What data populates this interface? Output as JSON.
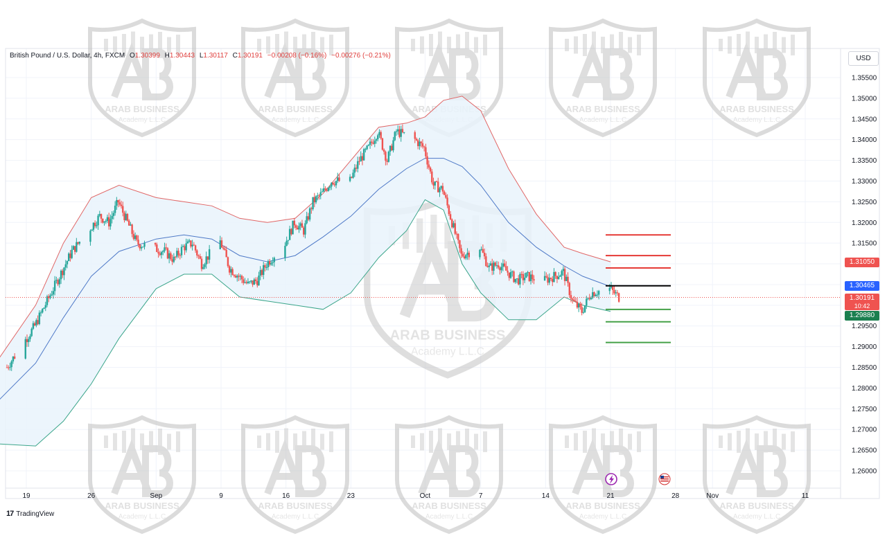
{
  "header": {
    "symbol": "British Pound / U.S. Dollar, 4h, FXCM",
    "open_label": "O",
    "open": "1.30399",
    "high_label": "H",
    "high": "1.30443",
    "low_label": "L",
    "low": "1.30117",
    "close_label": "C",
    "close": "1.30191",
    "change": "−0.00208 (−0.16%)",
    "change2": "−0.00276 (−0.21%)"
  },
  "currency": "USD",
  "brand": {
    "name": "TradingView"
  },
  "watermark": {
    "name": "ARAB BUSINESS",
    "sub": "Academy L.L.C"
  },
  "colors": {
    "up": "#26a69a",
    "down": "#ef5350",
    "upper_band": "#e06666",
    "middle_band": "#4e79c7",
    "lower_band": "#3aa58a",
    "band_fill": "#e9f3fb",
    "resistance": "#e53935",
    "support": "#43a047",
    "pivot": "#000000",
    "tag_red": "#ef5350",
    "tag_blue": "#2962ff",
    "tag_green": "#1b7f4f"
  },
  "tags": {
    "resistance": "1.31050",
    "pivot": "1.30465",
    "last_price": "1.30191",
    "countdown": "10:42",
    "support": "1.29880"
  },
  "chart_data": {
    "type": "line",
    "title": "",
    "xlabel": "",
    "ylabel": "",
    "y_ticks": [
      "1.35500",
      "1.35000",
      "1.34500",
      "1.34000",
      "1.33500",
      "1.33000",
      "1.32500",
      "1.32000",
      "1.31500",
      "1.31000",
      "1.30500",
      "1.30000",
      "1.29500",
      "1.29000",
      "1.28500",
      "1.28000",
      "1.27500",
      "1.27000",
      "1.26500",
      "1.26000"
    ],
    "ylim": [
      1.257,
      1.361
    ],
    "x_ticks": [
      {
        "label": "19",
        "date": "2024-08-19"
      },
      {
        "label": "26",
        "date": "2024-08-26"
      },
      {
        "label": "Sep",
        "date": "2024-09-02"
      },
      {
        "label": "9",
        "date": "2024-09-09"
      },
      {
        "label": "16",
        "date": "2024-09-16"
      },
      {
        "label": "23",
        "date": "2024-09-23"
      },
      {
        "label": "Oct",
        "date": "2024-10-01"
      },
      {
        "label": "7",
        "date": "2024-10-07"
      },
      {
        "label": "14",
        "date": "2024-10-14"
      },
      {
        "label": "21",
        "date": "2024-10-21"
      },
      {
        "label": "28",
        "date": "2024-10-28"
      },
      {
        "label": "Nov",
        "date": "2024-11-01"
      },
      {
        "label": "11",
        "date": "2024-11-11"
      }
    ],
    "price_path": [
      [
        "2024-08-16",
        1.285
      ],
      [
        "2024-08-19",
        1.295
      ],
      [
        "2024-08-21",
        1.304
      ],
      [
        "2024-08-23",
        1.313
      ],
      [
        "2024-08-26",
        1.3215
      ],
      [
        "2024-08-27",
        1.32
      ],
      [
        "2024-08-28",
        1.325
      ],
      [
        "2024-08-29",
        1.32
      ],
      [
        "2024-08-30",
        1.315
      ],
      [
        "2024-09-02",
        1.313
      ],
      [
        "2024-09-03",
        1.311
      ],
      [
        "2024-09-04",
        1.314
      ],
      [
        "2024-09-05",
        1.315
      ],
      [
        "2024-09-06",
        1.31
      ],
      [
        "2024-09-08",
        1.3155
      ],
      [
        "2024-09-09",
        1.309
      ],
      [
        "2024-09-10",
        1.307
      ],
      [
        "2024-09-11",
        1.305
      ],
      [
        "2024-09-12",
        1.306
      ],
      [
        "2024-09-13",
        1.31
      ],
      [
        "2024-09-15",
        1.315
      ],
      [
        "2024-09-16",
        1.32
      ],
      [
        "2024-09-17",
        1.318
      ],
      [
        "2024-09-18",
        1.325
      ],
      [
        "2024-09-19",
        1.327
      ],
      [
        "2024-09-20",
        1.33
      ],
      [
        "2024-09-22",
        1.33
      ],
      [
        "2024-09-23",
        1.335
      ],
      [
        "2024-09-24",
        1.338
      ],
      [
        "2024-09-25",
        1.342
      ],
      [
        "2024-09-26",
        1.335
      ],
      [
        "2024-09-27",
        1.342
      ],
      [
        "2024-09-28",
        1.341
      ],
      [
        "2024-09-29",
        1.34
      ],
      [
        "2024-09-30",
        1.338
      ],
      [
        "2024-10-01",
        1.329
      ],
      [
        "2024-10-02",
        1.328
      ],
      [
        "2024-10-03",
        1.32
      ],
      [
        "2024-10-04",
        1.312
      ],
      [
        "2024-10-06",
        1.314
      ],
      [
        "2024-10-07",
        1.309
      ],
      [
        "2024-10-08",
        1.31
      ],
      [
        "2024-10-09",
        1.308
      ],
      [
        "2024-10-10",
        1.306
      ],
      [
        "2024-10-11",
        1.307
      ],
      [
        "2024-10-13",
        1.306
      ],
      [
        "2024-10-14",
        1.307
      ],
      [
        "2024-10-15",
        1.308
      ],
      [
        "2024-10-16",
        1.301
      ],
      [
        "2024-10-17",
        1.2985
      ],
      [
        "2024-10-18",
        1.303
      ],
      [
        "2024-10-20",
        1.304
      ],
      [
        "2024-10-21",
        1.3019
      ]
    ],
    "series": [
      {
        "name": "",
        "key": "upper",
        "values": [
          [
            "2024-08-16",
            1.287
          ],
          [
            "2024-08-20",
            1.3
          ],
          [
            "2024-08-23",
            1.315
          ],
          [
            "2024-08-26",
            1.326
          ],
          [
            "2024-08-29",
            1.329
          ],
          [
            "2024-09-02",
            1.326
          ],
          [
            "2024-09-05",
            1.325
          ],
          [
            "2024-09-08",
            1.324
          ],
          [
            "2024-09-11",
            1.321
          ],
          [
            "2024-09-14",
            1.32
          ],
          [
            "2024-09-17",
            1.321
          ],
          [
            "2024-09-20",
            1.327
          ],
          [
            "2024-09-23",
            1.335
          ],
          [
            "2024-09-26",
            1.343
          ],
          [
            "2024-09-29",
            1.344
          ],
          [
            "2024-10-01",
            1.3455
          ],
          [
            "2024-10-03",
            1.3495
          ],
          [
            "2024-10-05",
            1.3505
          ],
          [
            "2024-10-07",
            1.347
          ],
          [
            "2024-10-10",
            1.333
          ],
          [
            "2024-10-13",
            1.322
          ],
          [
            "2024-10-16",
            1.314
          ],
          [
            "2024-10-18",
            1.3125
          ],
          [
            "2024-10-21",
            1.3105
          ]
        ]
      },
      {
        "name": "",
        "key": "middle",
        "values": [
          [
            "2024-08-16",
            1.277
          ],
          [
            "2024-08-20",
            1.286
          ],
          [
            "2024-08-23",
            1.297
          ],
          [
            "2024-08-26",
            1.307
          ],
          [
            "2024-08-29",
            1.313
          ],
          [
            "2024-09-02",
            1.316
          ],
          [
            "2024-09-05",
            1.317
          ],
          [
            "2024-09-08",
            1.316
          ],
          [
            "2024-09-11",
            1.312
          ],
          [
            "2024-09-14",
            1.3105
          ],
          [
            "2024-09-17",
            1.312
          ],
          [
            "2024-09-20",
            1.3165
          ],
          [
            "2024-09-23",
            1.3215
          ],
          [
            "2024-09-26",
            1.328
          ],
          [
            "2024-09-29",
            1.333
          ],
          [
            "2024-10-01",
            1.3355
          ],
          [
            "2024-10-03",
            1.3355
          ],
          [
            "2024-10-05",
            1.3335
          ],
          [
            "2024-10-07",
            1.329
          ],
          [
            "2024-10-10",
            1.32
          ],
          [
            "2024-10-13",
            1.314
          ],
          [
            "2024-10-16",
            1.3095
          ],
          [
            "2024-10-18",
            1.307
          ],
          [
            "2024-10-21",
            1.3045
          ]
        ]
      },
      {
        "name": "",
        "key": "lower",
        "values": [
          [
            "2024-08-16",
            1.2665
          ],
          [
            "2024-08-20",
            1.266
          ],
          [
            "2024-08-23",
            1.272
          ],
          [
            "2024-08-26",
            1.281
          ],
          [
            "2024-08-29",
            1.292
          ],
          [
            "2024-09-02",
            1.304
          ],
          [
            "2024-09-05",
            1.3075
          ],
          [
            "2024-09-08",
            1.3075
          ],
          [
            "2024-09-11",
            1.302
          ],
          [
            "2024-09-14",
            1.301
          ],
          [
            "2024-09-17",
            1.3
          ],
          [
            "2024-09-20",
            1.299
          ],
          [
            "2024-09-23",
            1.303
          ],
          [
            "2024-09-26",
            1.3115
          ],
          [
            "2024-09-29",
            1.318
          ],
          [
            "2024-10-01",
            1.3255
          ],
          [
            "2024-10-03",
            1.323
          ],
          [
            "2024-10-05",
            1.31
          ],
          [
            "2024-10-07",
            1.303
          ],
          [
            "2024-10-10",
            1.2965
          ],
          [
            "2024-10-13",
            1.2965
          ],
          [
            "2024-10-16",
            1.302
          ],
          [
            "2024-10-18",
            1.3
          ],
          [
            "2024-10-21",
            1.2985
          ]
        ]
      }
    ],
    "levels": {
      "resistance": [
        1.317,
        1.312,
        1.309
      ],
      "pivot": 1.3047,
      "support": [
        1.299,
        1.296,
        1.291
      ],
      "last_price": 1.3019
    },
    "grid": true,
    "events": [
      "lightning-icon",
      "us-flag-icon"
    ]
  }
}
